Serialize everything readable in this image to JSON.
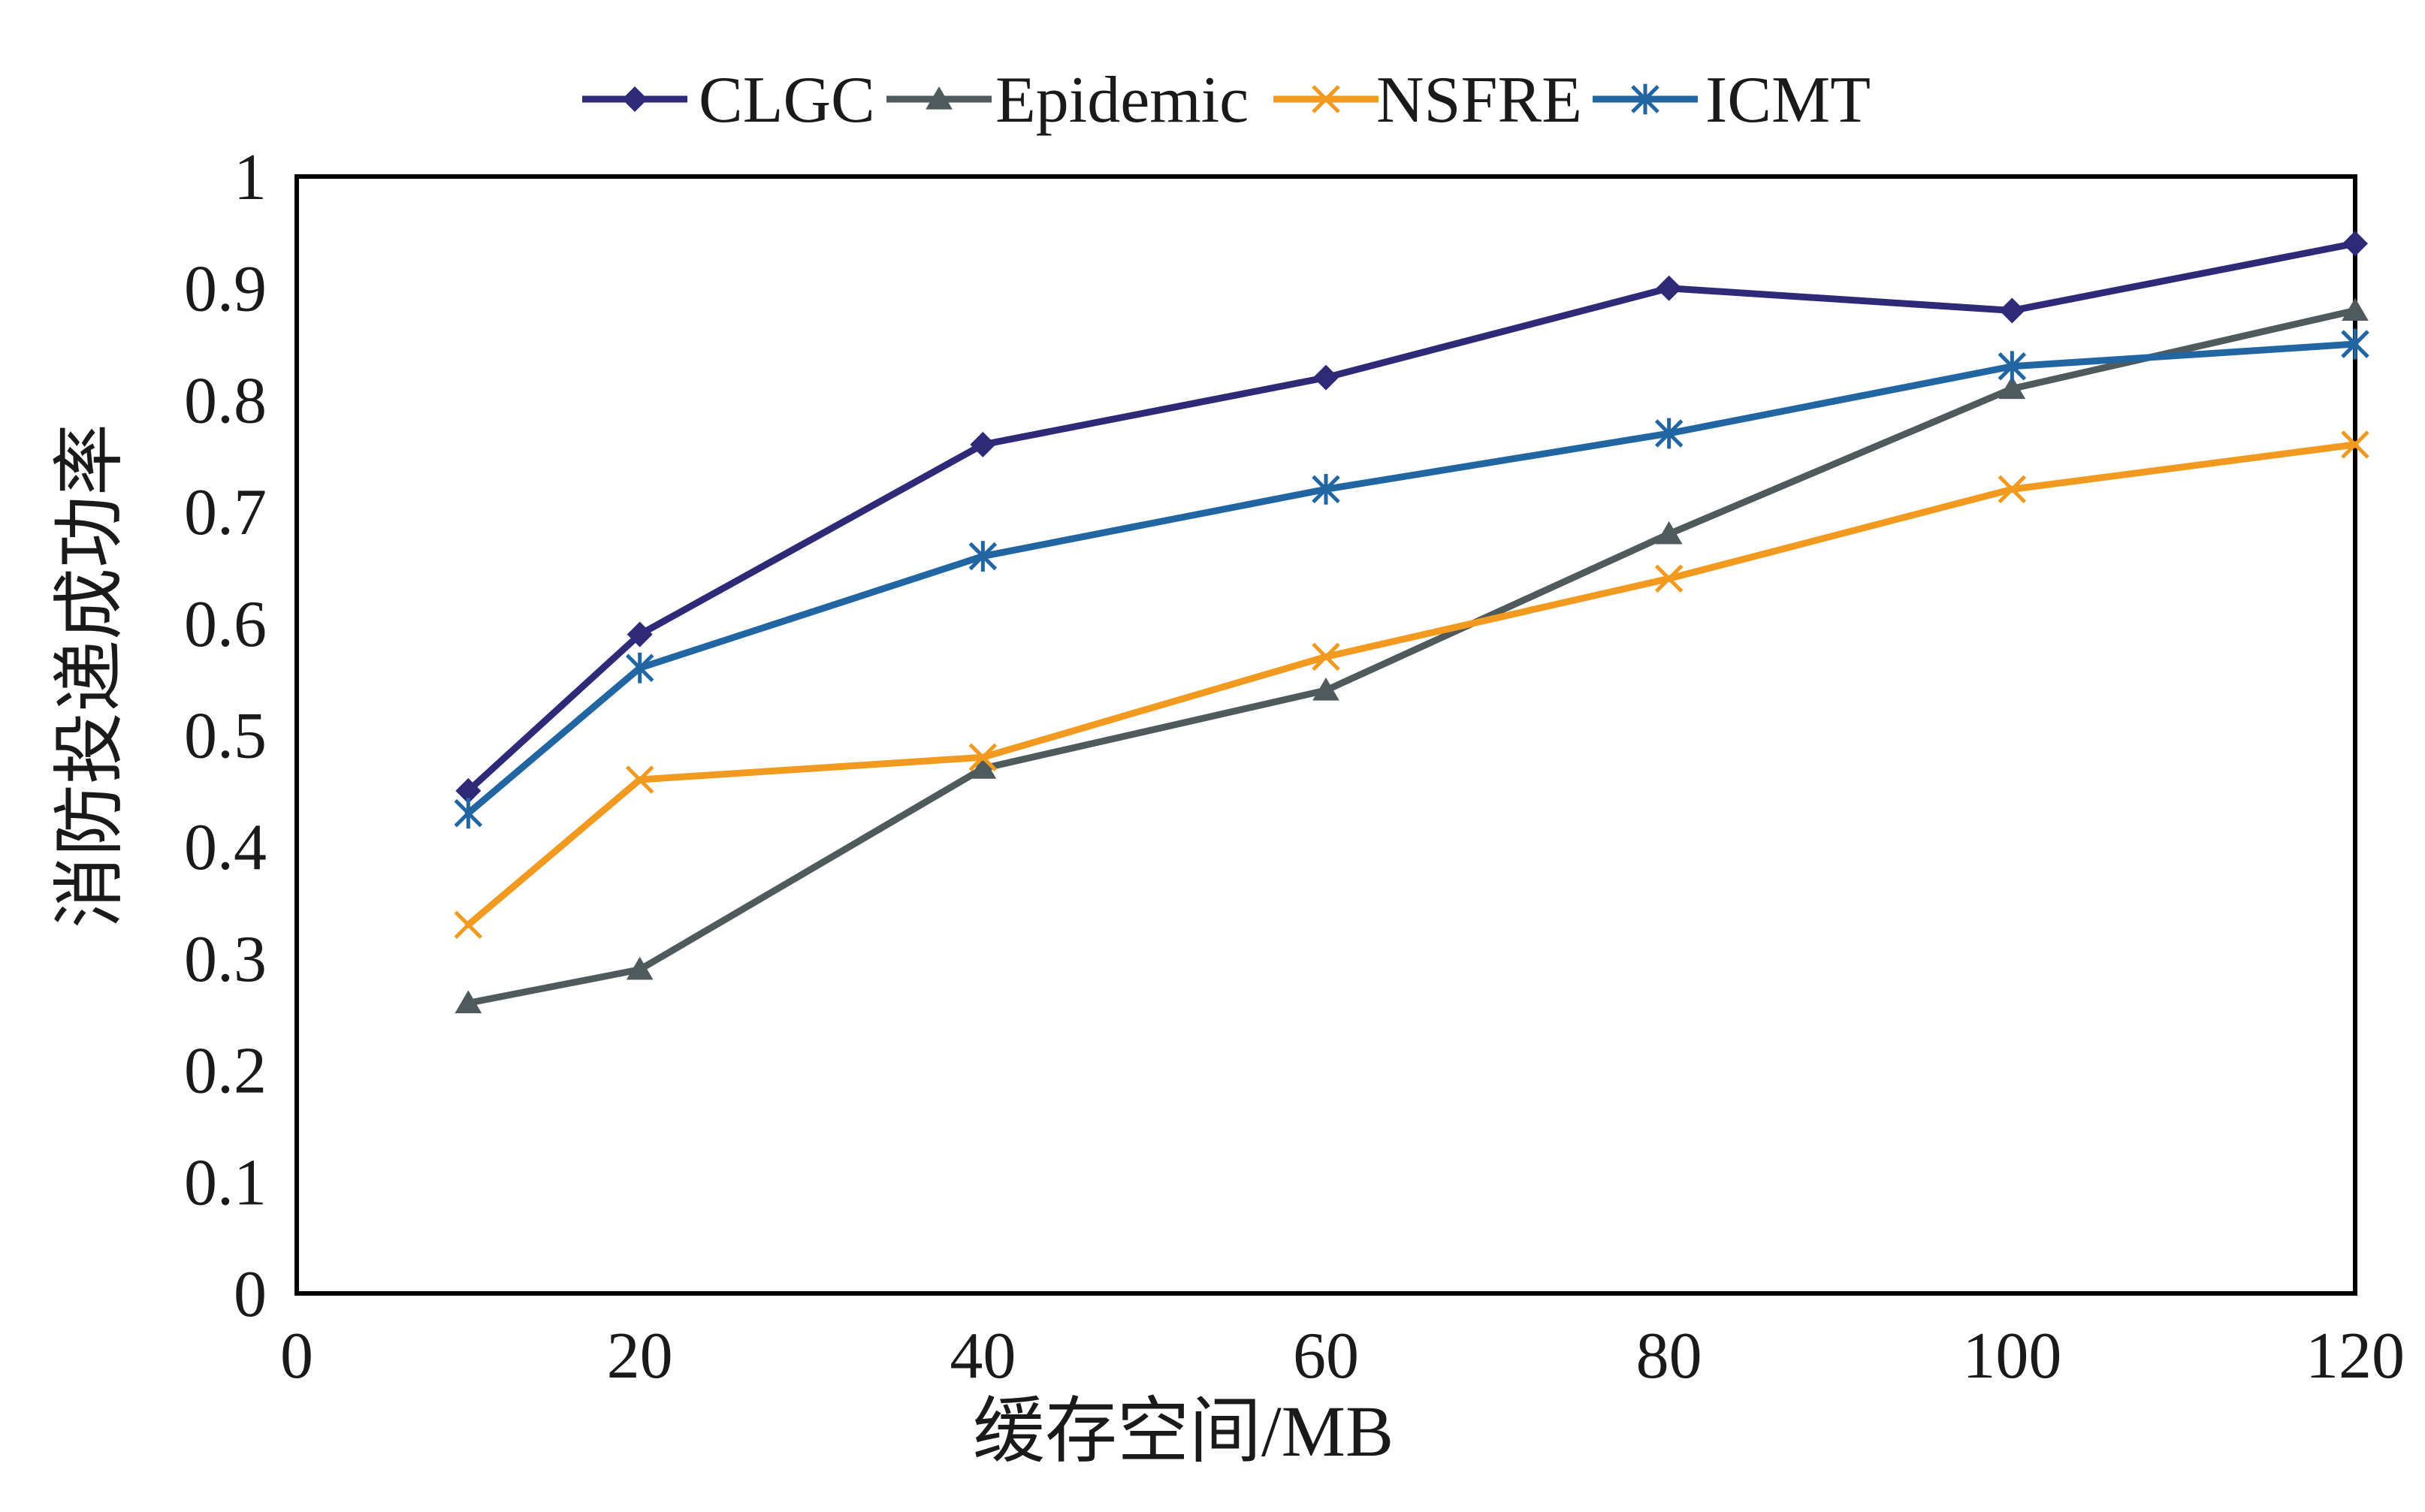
{
  "chart_data": {
    "type": "line",
    "xlabel": "缓存空间/MB",
    "ylabel": "消防投递成功率",
    "xlim": [
      0,
      120
    ],
    "ylim": [
      0,
      1
    ],
    "x_ticks": [
      "0",
      "20",
      "40",
      "60",
      "80",
      "100",
      "120"
    ],
    "y_ticks": [
      "0",
      "0.1",
      "0.2",
      "0.3",
      "0.4",
      "0.5",
      "0.6",
      "0.7",
      "0.8",
      "0.9",
      "1"
    ],
    "grid": false,
    "legend_position": "top",
    "x": [
      10,
      20,
      40,
      60,
      80,
      100,
      120
    ],
    "series": [
      {
        "name": "CLGC",
        "color": "#2e2a78",
        "marker": "diamond",
        "values": [
          0.45,
          0.59,
          0.76,
          0.82,
          0.9,
          0.88,
          0.94
        ]
      },
      {
        "name": "Epidemic",
        "color": "#4f5a5c",
        "marker": "triangle",
        "values": [
          0.26,
          0.29,
          0.47,
          0.54,
          0.68,
          0.81,
          0.88
        ]
      },
      {
        "name": "NSFRE",
        "color": "#f29a1f",
        "marker": "x",
        "values": [
          0.33,
          0.46,
          0.48,
          0.57,
          0.64,
          0.72,
          0.76
        ]
      },
      {
        "name": "ICMT",
        "color": "#2165a3",
        "marker": "star",
        "values": [
          0.43,
          0.56,
          0.66,
          0.72,
          0.77,
          0.83,
          0.85
        ]
      }
    ]
  }
}
